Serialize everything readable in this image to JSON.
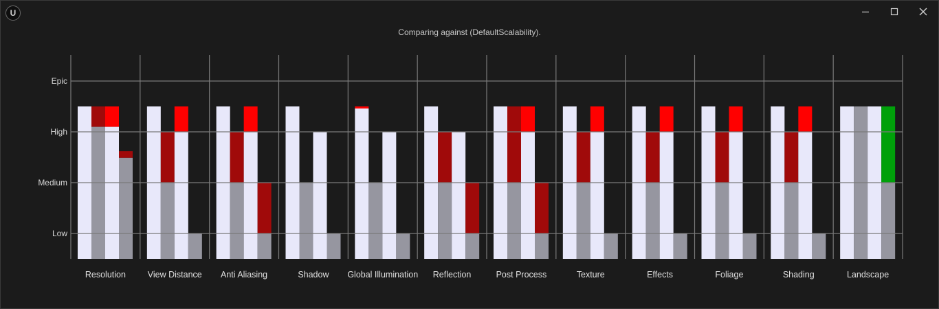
{
  "window": {
    "logo_glyph": "U",
    "subtitle": "Comparing against (DefaultScalability).",
    "controls": [
      "minimize-icon",
      "maximize-icon",
      "close-icon"
    ]
  },
  "colors": {
    "background": "#1b1b1b",
    "current": "#e8e8fa",
    "default": "#9696a0",
    "lower_diff": "#a00a0a",
    "higher_diff": "#ff0000",
    "improved": "#00a00a",
    "grid": "#7a7a7a"
  },
  "chart_data": {
    "type": "bar",
    "levels": [
      "Low",
      "Medium",
      "High",
      "Epic"
    ],
    "ylim": [
      0,
      3
    ],
    "legend": "none",
    "grid": true,
    "groups": [
      {
        "label": "Resolution",
        "bars": [
          {
            "base": 3,
            "base_color": "current"
          },
          {
            "base": 2.6,
            "base_color": "default",
            "diff": 3,
            "diff_color": "lower_diff"
          },
          {
            "base": 2.6,
            "base_color": "current",
            "diff": 3,
            "diff_color": "higher_diff"
          },
          {
            "base": 1.99,
            "base_color": "default",
            "diff": 2.12,
            "diff_color": "lower_diff"
          }
        ]
      },
      {
        "label": "View Distance",
        "bars": [
          {
            "base": 3,
            "base_color": "current"
          },
          {
            "base": 1.5,
            "base_color": "default",
            "diff": 2.5,
            "diff_color": "lower_diff"
          },
          {
            "base": 2.5,
            "base_color": "current",
            "diff": 3,
            "diff_color": "higher_diff"
          },
          {
            "base": 0.5,
            "base_color": "default"
          }
        ]
      },
      {
        "label": "Anti Aliasing",
        "bars": [
          {
            "base": 3,
            "base_color": "current"
          },
          {
            "base": 1.5,
            "base_color": "default",
            "diff": 2.5,
            "diff_color": "lower_diff"
          },
          {
            "base": 2.5,
            "base_color": "current",
            "diff": 3,
            "diff_color": "higher_diff"
          },
          {
            "base": 0.5,
            "base_color": "default",
            "diff": 1.5,
            "diff_color": "lower_diff"
          }
        ]
      },
      {
        "label": "Shadow",
        "bars": [
          {
            "base": 3,
            "base_color": "current"
          },
          {
            "base": 1.5,
            "base_color": "default"
          },
          {
            "base": 2.5,
            "base_color": "current"
          },
          {
            "base": 0.5,
            "base_color": "default"
          }
        ]
      },
      {
        "label": "Global Illumination",
        "bars": [
          {
            "base": 2.96,
            "base_color": "current",
            "diff": 3,
            "diff_color": "higher_diff"
          },
          {
            "base": 1.5,
            "base_color": "default"
          },
          {
            "base": 2.5,
            "base_color": "current"
          },
          {
            "base": 0.5,
            "base_color": "default"
          }
        ]
      },
      {
        "label": "Reflection",
        "bars": [
          {
            "base": 3,
            "base_color": "current"
          },
          {
            "base": 1.5,
            "base_color": "default",
            "diff": 2.5,
            "diff_color": "lower_diff"
          },
          {
            "base": 2.5,
            "base_color": "current"
          },
          {
            "base": 0.5,
            "base_color": "default",
            "diff": 1.5,
            "diff_color": "lower_diff"
          }
        ]
      },
      {
        "label": "Post Process",
        "bars": [
          {
            "base": 3,
            "base_color": "current"
          },
          {
            "base": 1.5,
            "base_color": "default",
            "diff": 3,
            "diff_color": "lower_diff"
          },
          {
            "base": 2.5,
            "base_color": "current",
            "diff": 3,
            "diff_color": "higher_diff"
          },
          {
            "base": 0.5,
            "base_color": "default",
            "diff": 1.5,
            "diff_color": "lower_diff"
          }
        ]
      },
      {
        "label": "Texture",
        "bars": [
          {
            "base": 3,
            "base_color": "current"
          },
          {
            "base": 1.5,
            "base_color": "default",
            "diff": 2.5,
            "diff_color": "lower_diff"
          },
          {
            "base": 2.5,
            "base_color": "current",
            "diff": 3,
            "diff_color": "higher_diff"
          },
          {
            "base": 0.5,
            "base_color": "default"
          }
        ]
      },
      {
        "label": "Effects",
        "bars": [
          {
            "base": 3,
            "base_color": "current"
          },
          {
            "base": 1.5,
            "base_color": "default",
            "diff": 2.5,
            "diff_color": "lower_diff"
          },
          {
            "base": 2.5,
            "base_color": "current",
            "diff": 3,
            "diff_color": "higher_diff"
          },
          {
            "base": 0.5,
            "base_color": "default"
          }
        ]
      },
      {
        "label": "Foliage",
        "bars": [
          {
            "base": 3,
            "base_color": "current"
          },
          {
            "base": 1.5,
            "base_color": "default",
            "diff": 2.5,
            "diff_color": "lower_diff"
          },
          {
            "base": 2.5,
            "base_color": "current",
            "diff": 3,
            "diff_color": "higher_diff"
          },
          {
            "base": 0.5,
            "base_color": "default"
          }
        ]
      },
      {
        "label": "Shading",
        "bars": [
          {
            "base": 3,
            "base_color": "current"
          },
          {
            "base": 1.5,
            "base_color": "default",
            "diff": 2.5,
            "diff_color": "lower_diff"
          },
          {
            "base": 2.5,
            "base_color": "current",
            "diff": 3,
            "diff_color": "higher_diff"
          },
          {
            "base": 0.5,
            "base_color": "default"
          }
        ]
      },
      {
        "label": "Landscape",
        "bars": [
          {
            "base": 3,
            "base_color": "current"
          },
          {
            "base": 3,
            "base_color": "default"
          },
          {
            "base": 3,
            "base_color": "current"
          },
          {
            "base": 1.5,
            "base_color": "default",
            "diff": 3,
            "diff_color": "improved"
          }
        ]
      }
    ]
  }
}
